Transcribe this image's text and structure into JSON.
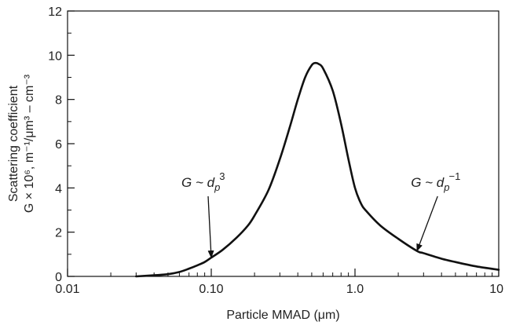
{
  "chart_data": {
    "type": "line",
    "xlabel": "Particle MMAD (μm)",
    "ylabel_line1": "Scattering coefficient",
    "ylabel_line2": "G × 10⁶, m⁻¹/μm³ – cm⁻³",
    "x_scale": "log",
    "xlim": [
      0.01,
      10
    ],
    "ylim": [
      0,
      12
    ],
    "x_ticks": [
      {
        "value": 0.01,
        "label": "0.01"
      },
      {
        "value": 0.1,
        "label": "0.10"
      },
      {
        "value": 1,
        "label": "1.0"
      },
      {
        "value": 10,
        "label": "10"
      }
    ],
    "y_ticks": [
      {
        "value": 0,
        "label": "0"
      },
      {
        "value": 2,
        "label": "2"
      },
      {
        "value": 4,
        "label": "4"
      },
      {
        "value": 6,
        "label": "6"
      },
      {
        "value": 8,
        "label": "8"
      },
      {
        "value": 10,
        "label": "10"
      },
      {
        "value": 12,
        "label": "12"
      }
    ],
    "grid": false,
    "legend": "none",
    "line_color": "#111111",
    "series": [
      {
        "points": [
          [
            0.03,
            0.0
          ],
          [
            0.04,
            0.05
          ],
          [
            0.05,
            0.1
          ],
          [
            0.06,
            0.2
          ],
          [
            0.07,
            0.35
          ],
          [
            0.08,
            0.5
          ],
          [
            0.09,
            0.65
          ],
          [
            0.1,
            0.85
          ],
          [
            0.12,
            1.2
          ],
          [
            0.15,
            1.75
          ],
          [
            0.18,
            2.3
          ],
          [
            0.2,
            2.75
          ],
          [
            0.25,
            3.9
          ],
          [
            0.3,
            5.3
          ],
          [
            0.35,
            6.7
          ],
          [
            0.4,
            8.0
          ],
          [
            0.45,
            9.0
          ],
          [
            0.5,
            9.55
          ],
          [
            0.53,
            9.65
          ],
          [
            0.56,
            9.6
          ],
          [
            0.6,
            9.4
          ],
          [
            0.7,
            8.4
          ],
          [
            0.8,
            6.9
          ],
          [
            0.9,
            5.3
          ],
          [
            1.0,
            4.0
          ],
          [
            1.1,
            3.3
          ],
          [
            1.2,
            2.95
          ],
          [
            1.5,
            2.3
          ],
          [
            2.0,
            1.7
          ],
          [
            2.7,
            1.15
          ],
          [
            3.0,
            1.05
          ],
          [
            4.0,
            0.8
          ],
          [
            5.0,
            0.65
          ],
          [
            7.0,
            0.45
          ],
          [
            10.0,
            0.3
          ]
        ]
      }
    ],
    "annotations": [
      {
        "text_main": "G ~ d",
        "sub": "p",
        "sup": "3",
        "text_x": 0.062,
        "text_y": 4.05,
        "arrow_x": 0.1,
        "arrow_y": 0.85
      },
      {
        "text_main": "G ~ d",
        "sub": "p",
        "sup": "−1",
        "text_x": 2.45,
        "text_y": 4.05,
        "arrow_x": 2.7,
        "arrow_y": 1.15
      }
    ]
  }
}
